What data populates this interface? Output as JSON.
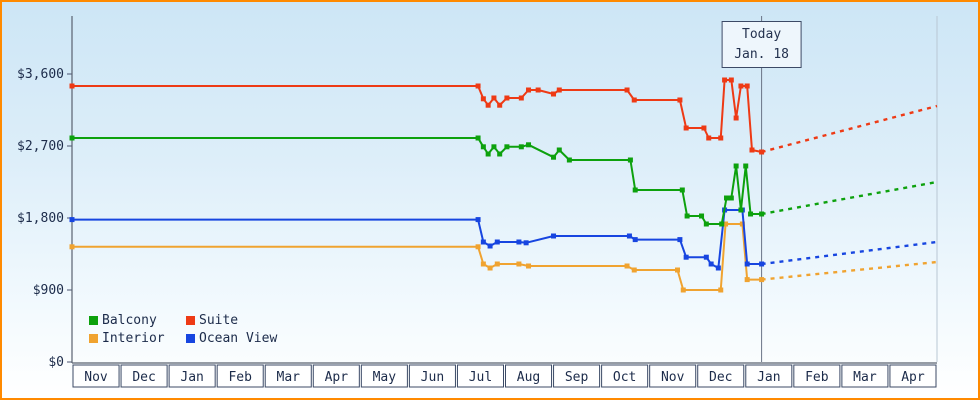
{
  "legend": [
    {
      "id": "balcony",
      "label": "Balcony",
      "color": "#0da10d"
    },
    {
      "id": "suite",
      "label": "Suite",
      "color": "#ee3a15"
    },
    {
      "id": "interior",
      "label": "Interior",
      "color": "#f0a330"
    },
    {
      "id": "ocean_view",
      "label": "Ocean View",
      "color": "#1745e0"
    }
  ],
  "chart_data": {
    "type": "line",
    "x_axis": {
      "months": [
        "Nov",
        "Dec",
        "Jan",
        "Feb",
        "Mar",
        "Apr",
        "May",
        "Jun",
        "Jul",
        "Aug",
        "Sep",
        "Oct",
        "Nov",
        "Dec",
        "Jan",
        "Feb",
        "Mar",
        "Apr"
      ]
    },
    "y_axis": {
      "max": 4325,
      "ticks": [
        {
          "label": "$0",
          "value": 0
        },
        {
          "label": "$900",
          "value": 900
        },
        {
          "label": "$1,800",
          "value": 1800
        },
        {
          "label": "$2,700",
          "value": 2700
        },
        {
          "label": "$3,600",
          "value": 3600
        }
      ]
    },
    "today": {
      "x": 14.35,
      "label": "Today",
      "date": "Jan. 18"
    },
    "text_color": "#1c2b4a",
    "axis_color": "#4a5470",
    "today_line_color": "#6a7486",
    "plot_right_edge_color": "#b9c7d4",
    "series": [
      {
        "id": "interior",
        "name": "Interior",
        "color": "#f0a330",
        "points": [
          [
            0,
            1440
          ],
          [
            8.45,
            1440
          ],
          [
            8.56,
            1225
          ],
          [
            8.7,
            1175
          ],
          [
            8.85,
            1225
          ],
          [
            9.3,
            1225
          ],
          [
            9.5,
            1200
          ],
          [
            11.55,
            1200
          ],
          [
            11.7,
            1150
          ],
          [
            12.6,
            1150
          ],
          [
            12.72,
            900
          ],
          [
            13.5,
            900
          ],
          [
            13.6,
            1725
          ],
          [
            13.95,
            1725
          ],
          [
            14.05,
            1030
          ],
          [
            14.35,
            1030
          ]
        ],
        "forecast": [
          [
            14.35,
            1030
          ],
          [
            18,
            1250
          ]
        ]
      },
      {
        "id": "ocean_view",
        "name": "Ocean View",
        "color": "#1745e0",
        "points": [
          [
            0,
            1780
          ],
          [
            8.45,
            1780
          ],
          [
            8.56,
            1500
          ],
          [
            8.7,
            1450
          ],
          [
            8.85,
            1500
          ],
          [
            9.3,
            1500
          ],
          [
            9.45,
            1490
          ],
          [
            10.02,
            1575
          ],
          [
            11.6,
            1575
          ],
          [
            11.72,
            1530
          ],
          [
            12.65,
            1530
          ],
          [
            12.78,
            1310
          ],
          [
            13.2,
            1310
          ],
          [
            13.3,
            1225
          ],
          [
            13.45,
            1175
          ],
          [
            13.58,
            1900
          ],
          [
            13.95,
            1900
          ],
          [
            14.05,
            1225
          ],
          [
            14.35,
            1225
          ]
        ],
        "forecast": [
          [
            14.35,
            1225
          ],
          [
            18,
            1500
          ]
        ]
      },
      {
        "id": "balcony",
        "name": "Balcony",
        "color": "#0da10d",
        "points": [
          [
            0,
            2800
          ],
          [
            8.45,
            2800
          ],
          [
            8.56,
            2690
          ],
          [
            8.66,
            2600
          ],
          [
            8.78,
            2690
          ],
          [
            8.9,
            2600
          ],
          [
            9.05,
            2690
          ],
          [
            9.35,
            2690
          ],
          [
            9.5,
            2715
          ],
          [
            10.02,
            2560
          ],
          [
            10.14,
            2650
          ],
          [
            10.35,
            2525
          ],
          [
            11.62,
            2525
          ],
          [
            11.72,
            2150
          ],
          [
            12.7,
            2150
          ],
          [
            12.8,
            1825
          ],
          [
            13.1,
            1825
          ],
          [
            13.2,
            1725
          ],
          [
            13.52,
            1725
          ],
          [
            13.62,
            2050
          ],
          [
            13.72,
            2050
          ],
          [
            13.82,
            2450
          ],
          [
            13.92,
            1900
          ],
          [
            14.02,
            2450
          ],
          [
            14.12,
            1850
          ],
          [
            14.35,
            1850
          ]
        ],
        "forecast": [
          [
            14.35,
            1850
          ],
          [
            18,
            2250
          ]
        ]
      },
      {
        "id": "suite",
        "name": "Suite",
        "color": "#ee3a15",
        "points": [
          [
            0,
            3450
          ],
          [
            8.45,
            3450
          ],
          [
            8.56,
            3290
          ],
          [
            8.66,
            3210
          ],
          [
            8.78,
            3300
          ],
          [
            8.9,
            3210
          ],
          [
            9.05,
            3300
          ],
          [
            9.35,
            3300
          ],
          [
            9.5,
            3400
          ],
          [
            9.7,
            3400
          ],
          [
            10.02,
            3350
          ],
          [
            10.14,
            3400
          ],
          [
            11.55,
            3400
          ],
          [
            11.7,
            3275
          ],
          [
            12.65,
            3275
          ],
          [
            12.78,
            2925
          ],
          [
            13.15,
            2925
          ],
          [
            13.25,
            2800
          ],
          [
            13.5,
            2800
          ],
          [
            13.58,
            3525
          ],
          [
            13.72,
            3525
          ],
          [
            13.82,
            3050
          ],
          [
            13.92,
            3450
          ],
          [
            14.05,
            3450
          ],
          [
            14.15,
            2650
          ],
          [
            14.35,
            2625
          ]
        ],
        "forecast": [
          [
            14.35,
            2625
          ],
          [
            18,
            3200
          ]
        ]
      }
    ]
  }
}
